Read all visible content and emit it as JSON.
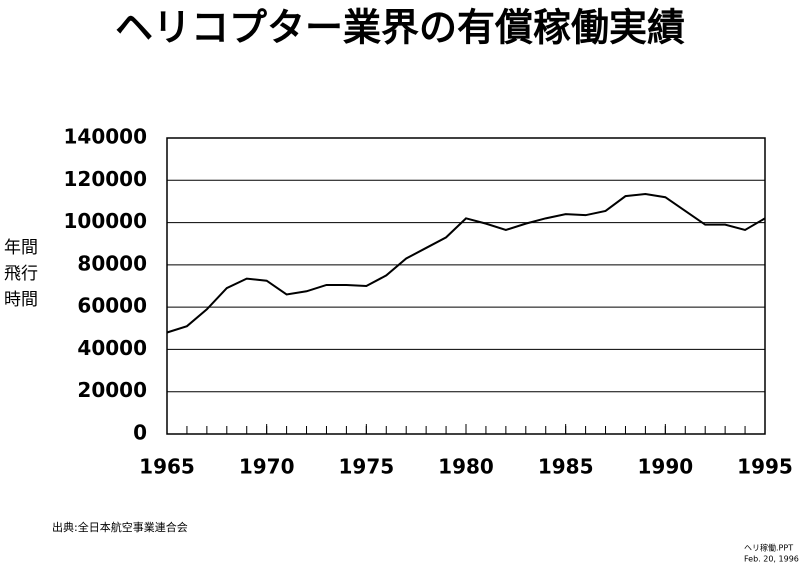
{
  "chart_data": {
    "type": "line",
    "title": "ヘリコプター業界の有償稼働実績",
    "ylabel": [
      "年間",
      "飛行",
      "時間"
    ],
    "source": "出典:全日本航空事業連合会",
    "file": "ヘリ稼働.PPT",
    "date": "Feb. 20, 1996",
    "x": [
      1965,
      1966,
      1967,
      1968,
      1969,
      1970,
      1971,
      1972,
      1973,
      1974,
      1975,
      1976,
      1977,
      1978,
      1979,
      1980,
      1981,
      1982,
      1983,
      1984,
      1985,
      1986,
      1987,
      1988,
      1989,
      1990,
      1991,
      1992,
      1993,
      1994,
      1995
    ],
    "series": [
      {
        "color": "#000000",
        "values": [
          48000,
          51000,
          59000,
          69000,
          73500,
          72500,
          66000,
          67500,
          70500,
          70500,
          70000,
          75000,
          83000,
          88000,
          93000,
          102000,
          99500,
          96500,
          99500,
          102000,
          104000,
          103500,
          105500,
          112500,
          113500,
          112000,
          105500,
          99000,
          99000,
          96500,
          102000
        ]
      }
    ],
    "xlim": [
      1965,
      1995
    ],
    "xticks": [
      1965,
      1970,
      1975,
      1980,
      1985,
      1990,
      1995
    ],
    "ylim": [
      0,
      140000
    ],
    "yticks": [
      0,
      20000,
      40000,
      60000,
      80000,
      100000,
      120000,
      140000
    ],
    "grid": true
  }
}
